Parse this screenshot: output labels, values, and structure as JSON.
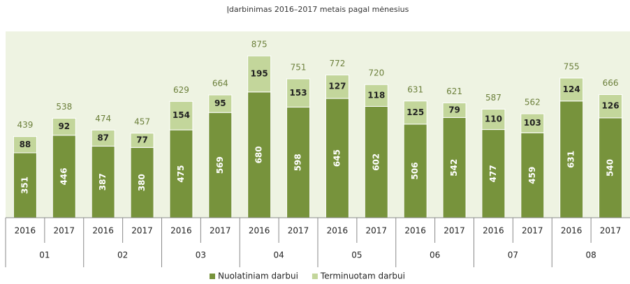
{
  "chart_data": {
    "type": "stacked_bar",
    "title": "Įdarbinimas 2016–2017 metais pagal mėnesius",
    "categories": [
      "2016",
      "2017",
      "2016",
      "2017",
      "2016",
      "2017",
      "2016",
      "2017",
      "2016",
      "2017",
      "2016",
      "2017",
      "2016",
      "2017",
      "2016",
      "2017"
    ],
    "groups": [
      "01",
      "02",
      "03",
      "04",
      "05",
      "06",
      "07",
      "08"
    ],
    "series": [
      {
        "name": "Nuolatiniam darbui",
        "color": "#77933c",
        "values": [
          351,
          446,
          387,
          380,
          475,
          569,
          680,
          598,
          645,
          602,
          506,
          542,
          477,
          459,
          631,
          540
        ]
      },
      {
        "name": "Terminuotam darbui",
        "color": "#c3d69b",
        "values": [
          88,
          92,
          87,
          77,
          154,
          95,
          195,
          153,
          127,
          118,
          125,
          79,
          110,
          103,
          124,
          126
        ]
      }
    ],
    "totals": [
      439,
      538,
      474,
      457,
      629,
      664,
      875,
      751,
      772,
      720,
      631,
      621,
      587,
      562,
      755,
      666
    ],
    "ylim": [
      0,
      1000
    ],
    "legend": "bottom"
  }
}
